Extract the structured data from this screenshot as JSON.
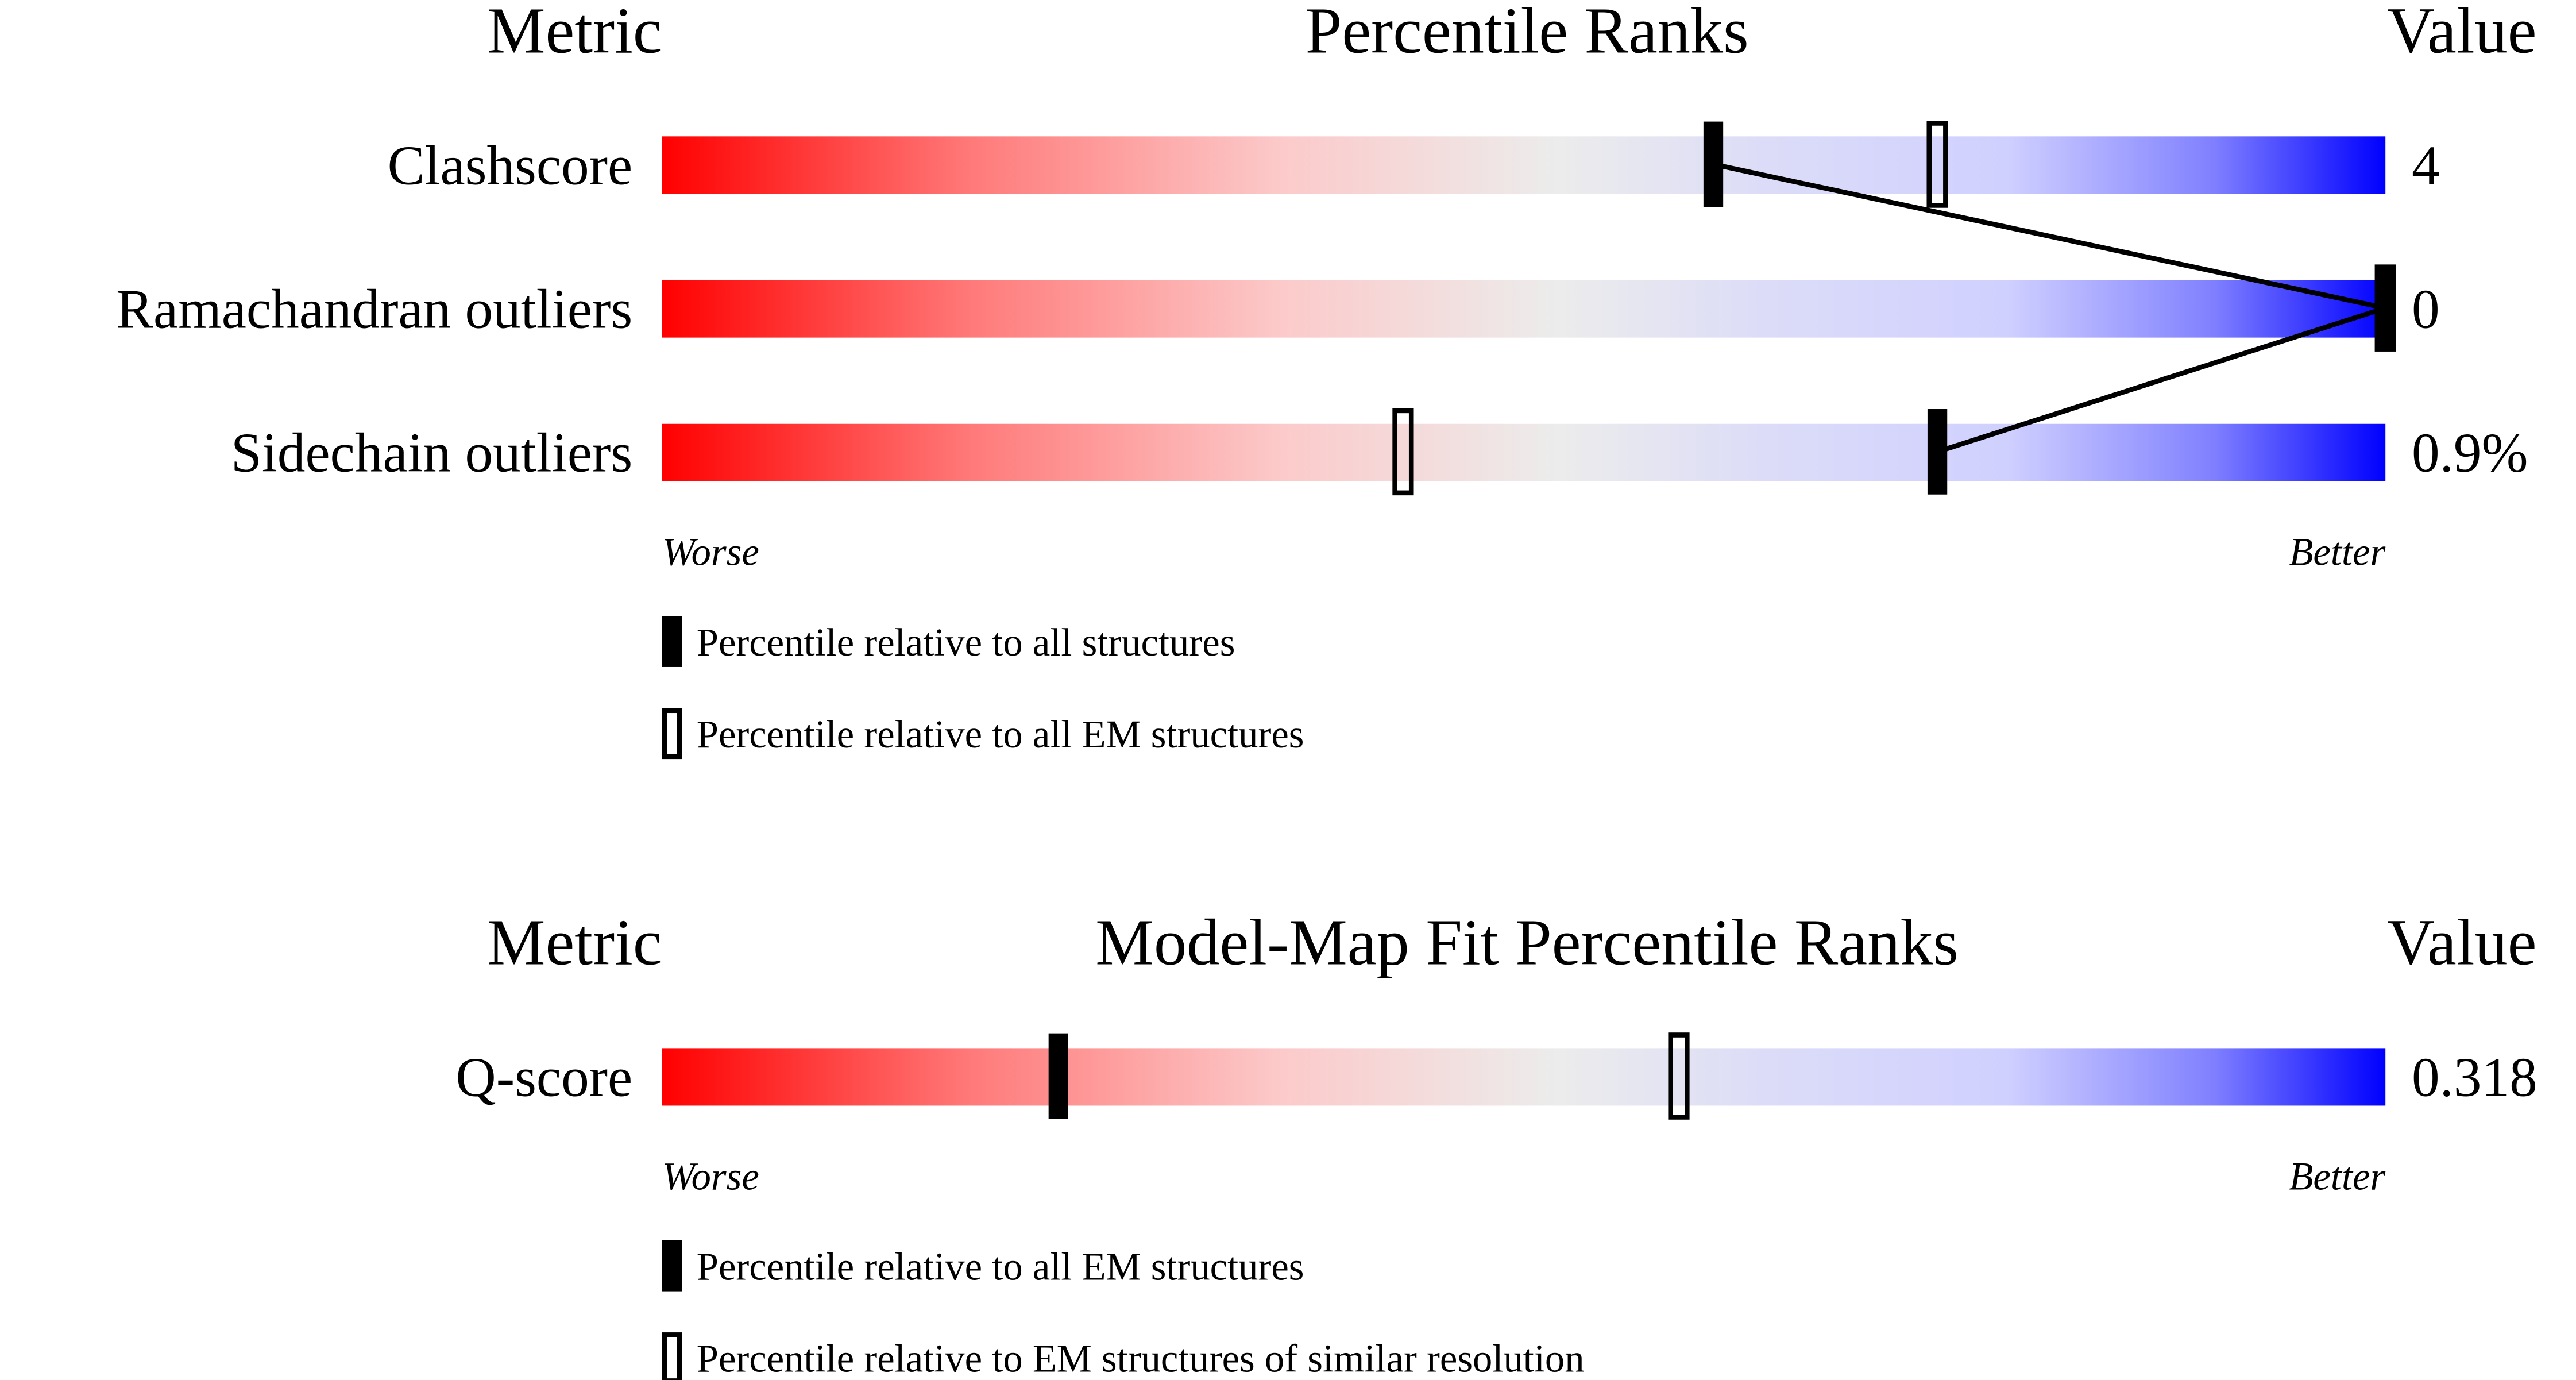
{
  "panels": [
    {
      "header": {
        "metric": "Metric",
        "title": "Percentile Ranks",
        "value": "Value"
      },
      "xlim": [
        0,
        100
      ],
      "rows": [
        {
          "metric": "Clashscore",
          "value": "4",
          "percentiles": [
            61,
            74
          ]
        },
        {
          "metric": "Ramachandran outliers",
          "value": "0",
          "percentiles": [
            100,
            100
          ]
        },
        {
          "metric": "Sidechain outliers",
          "value": "0.9%",
          "percentiles": [
            74,
            43
          ]
        }
      ],
      "worse": "Worse",
      "better": "Better",
      "legend": [
        {
          "label": "Percentile relative to all structures",
          "style": "filled"
        },
        {
          "label": "Percentile relative to all EM structures",
          "style": "open"
        }
      ]
    },
    {
      "header": {
        "metric": "Metric",
        "title": "Model-Map Fit Percentile Ranks",
        "value": "Value"
      },
      "xlim": [
        0,
        100
      ],
      "rows": [
        {
          "metric": "Q-score",
          "value": "0.318",
          "percentiles": [
            23,
            59
          ]
        }
      ],
      "worse": "Worse",
      "better": "Better",
      "legend": [
        {
          "label": "Percentile relative to all EM structures",
          "style": "filled"
        },
        {
          "label": "Percentile relative to EM structures of similar resolution",
          "style": "open"
        }
      ]
    }
  ]
}
